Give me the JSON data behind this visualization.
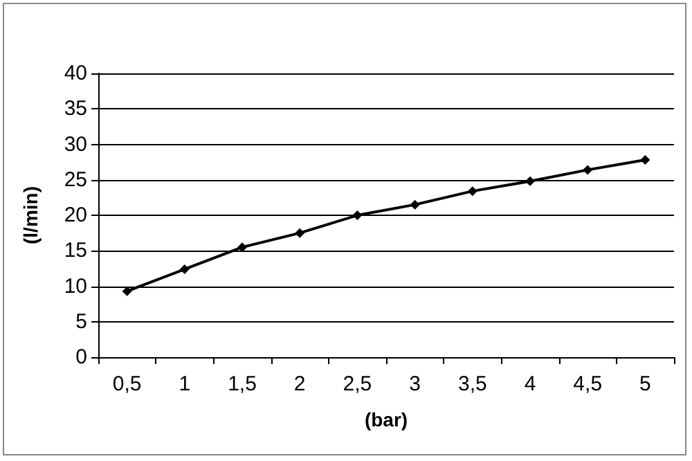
{
  "chart_data": {
    "type": "line",
    "xlabel": "(bar)",
    "ylabel": "(l/min)",
    "categories": [
      "0,5",
      "1",
      "1,5",
      "2",
      "2,5",
      "3",
      "3,5",
      "4",
      "4,5",
      "5"
    ],
    "series": [
      {
        "color": "#000000",
        "values": [
          9.3,
          12.4,
          15.5,
          17.5,
          20,
          21.5,
          23.4,
          24.8,
          26.4,
          27.8
        ]
      }
    ],
    "ylim": [
      0,
      40
    ],
    "yticks": [
      0,
      5,
      10,
      15,
      20,
      25,
      30,
      35,
      40
    ],
    "grid": "y",
    "marker": "diamond",
    "line_style": "solid"
  }
}
